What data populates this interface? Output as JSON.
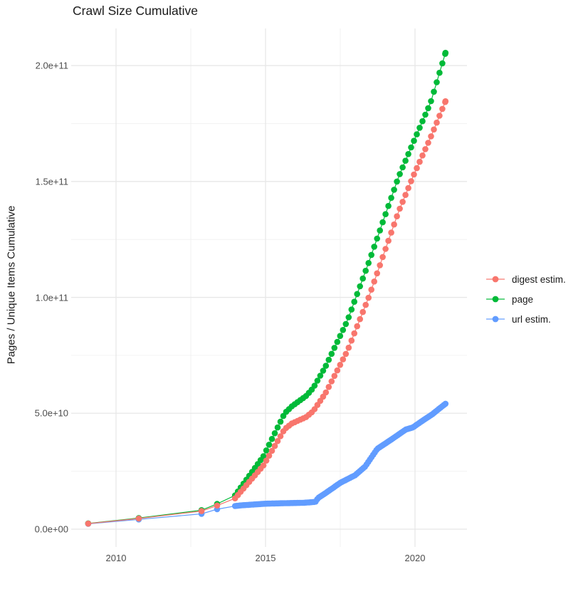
{
  "chart_data": {
    "type": "line-scatter",
    "title": "Crawl Size Cumulative",
    "ylabel": "Pages / Unique Items Cumulative",
    "xlabel": "",
    "grid": true,
    "legend_position": "right",
    "xlim": [
      2008.5,
      2021.738
    ],
    "ylim": [
      -7680000000.0,
      216000000000.0
    ],
    "x_ticks": [
      {
        "v": 2010,
        "label": "2010"
      },
      {
        "v": 2015,
        "label": "2015"
      },
      {
        "v": 2020,
        "label": "2020"
      }
    ],
    "x_minor": [
      2012.5,
      2017.5
    ],
    "y_ticks": [
      {
        "v": 0,
        "label": "0.0e+00"
      },
      {
        "v": 50000000000.0,
        "label": "5.0e+10"
      },
      {
        "v": 100000000000.0,
        "label": "1.0e+11"
      },
      {
        "v": 150000000000.0,
        "label": "1.5e+11"
      },
      {
        "v": 200000000000.0,
        "label": "2.0e+11"
      }
    ],
    "y_minor": [
      25000000000.0,
      75000000000.0,
      125000000000.0,
      175000000000.0
    ],
    "series": [
      {
        "name": "digest estim.",
        "color": "#F8766D",
        "dense_from": 2013.98,
        "dot_interval": 0.095,
        "points": [
          [
            2009.07,
            2400000000.0
          ],
          [
            2010.76,
            4600000000.0
          ],
          [
            2012.86,
            7800000000.0
          ],
          [
            2013.38,
            10200000000.0
          ],
          [
            2013.98,
            13300000000.0
          ],
          [
            2014.93,
            27500000000.0
          ],
          [
            2015.64,
            43200000000.0
          ],
          [
            2015.88,
            45600000000.0
          ],
          [
            2016.36,
            48400000000.0
          ],
          [
            2016.6,
            51000000000.0
          ],
          [
            2017.02,
            59000000000.0
          ],
          [
            2017.74,
            77000000000.0
          ],
          [
            2018.45,
            100000000000.0
          ],
          [
            2019.45,
            137000000000.0
          ],
          [
            2019.93,
            152000000000.0
          ],
          [
            2020.52,
            169000000000.0
          ],
          [
            2021.02,
            184600000000.0
          ]
        ]
      },
      {
        "name": "page",
        "color": "#00BA38",
        "dense_from": 2013.98,
        "dot_interval": 0.095,
        "points": [
          [
            2009.07,
            2500000000.0
          ],
          [
            2010.76,
            4800000000.0
          ],
          [
            2012.86,
            8200000000.0
          ],
          [
            2013.38,
            10900000000.0
          ],
          [
            2013.98,
            14600000000.0
          ],
          [
            2014.93,
            31500000000.0
          ],
          [
            2015.64,
            50000000000.0
          ],
          [
            2015.88,
            53000000000.0
          ],
          [
            2016.36,
            57500000000.0
          ],
          [
            2016.6,
            61000000000.0
          ],
          [
            2017.02,
            70500000000.0
          ],
          [
            2017.74,
            90000000000.0
          ],
          [
            2018.45,
            115000000000.0
          ],
          [
            2019.45,
            152000000000.0
          ],
          [
            2019.93,
            166500000000.0
          ],
          [
            2020.52,
            184000000000.0
          ],
          [
            2021.02,
            205500000000.0
          ]
        ]
      },
      {
        "name": "url estim.",
        "color": "#619CFF",
        "dense_from": 2013.98,
        "dot_interval": 0.055,
        "points": [
          [
            2009.07,
            2300000000.0
          ],
          [
            2010.76,
            4200000000.0
          ],
          [
            2012.86,
            6600000000.0
          ],
          [
            2013.38,
            8600000000.0
          ],
          [
            2013.98,
            10000000000.0
          ],
          [
            2014.2,
            10300000000.0
          ],
          [
            2015.0,
            11000000000.0
          ],
          [
            2015.6,
            11200000000.0
          ],
          [
            2016.3,
            11400000000.0
          ],
          [
            2016.67,
            11800000000.0
          ],
          [
            2016.76,
            13500000000.0
          ],
          [
            2017.0,
            15500000000.0
          ],
          [
            2017.5,
            20000000000.0
          ],
          [
            2018.0,
            23300000000.0
          ],
          [
            2018.33,
            27000000000.0
          ],
          [
            2018.74,
            34700000000.0
          ],
          [
            2019.21,
            38700000000.0
          ],
          [
            2019.69,
            43000000000.0
          ],
          [
            2019.93,
            43900000000.0
          ],
          [
            2020.17,
            46100000000.0
          ],
          [
            2020.57,
            49500000000.0
          ],
          [
            2020.81,
            52000000000.0
          ],
          [
            2021.02,
            54100000000.0
          ]
        ]
      }
    ]
  }
}
